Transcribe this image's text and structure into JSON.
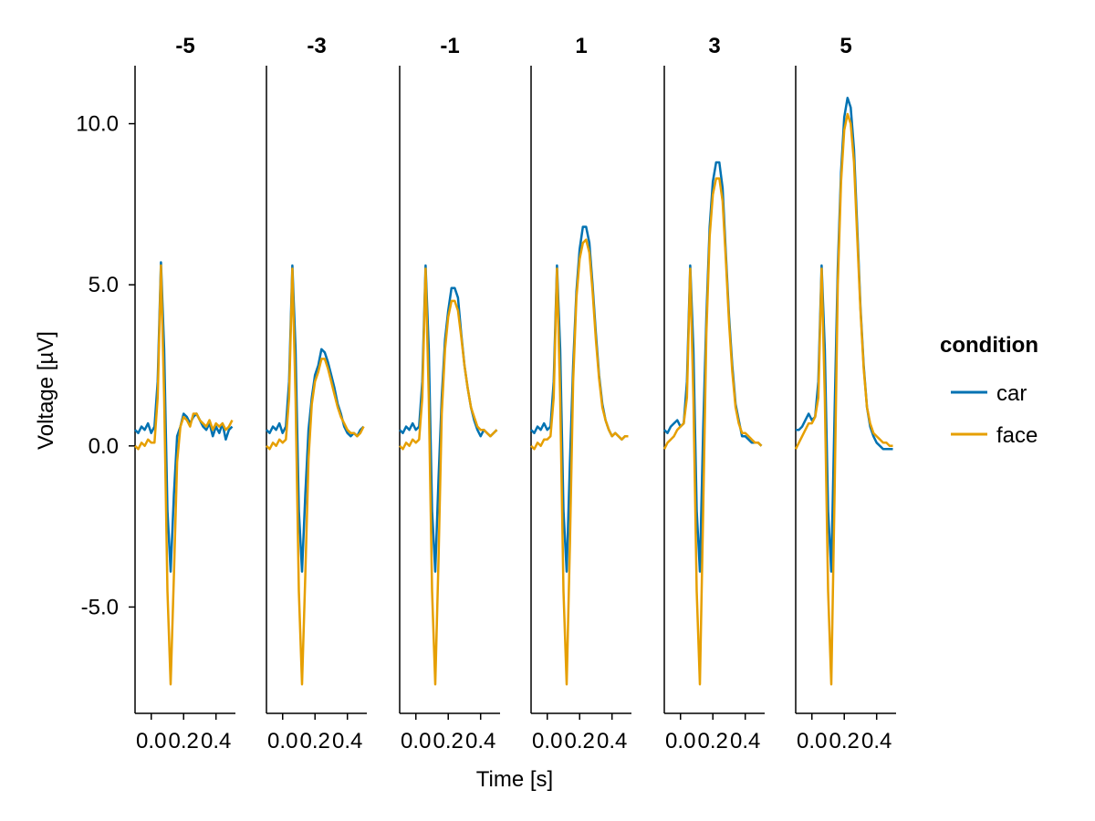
{
  "chart_data": {
    "type": "line",
    "xlabel": "Time [s]",
    "ylabel": "Voltage [µV]",
    "xlim": [
      -0.1,
      0.52
    ],
    "ylim": [
      -8.3,
      11.8
    ],
    "x_ticks": [
      0.0,
      0.2,
      0.4
    ],
    "x_tick_labels": [
      "0.0",
      "0.2",
      "0.4"
    ],
    "y_ticks": [
      -5.0,
      0.0,
      5.0,
      10.0
    ],
    "y_tick_labels": [
      "-5.0",
      "0.0",
      "5.0",
      "10.0"
    ],
    "grid": false,
    "legend": {
      "title": "condition",
      "placement": "right",
      "entries": [
        {
          "label": "car",
          "color": "#0072B2"
        },
        {
          "label": "face",
          "color": "#E69F00"
        }
      ]
    },
    "x": [
      -0.1,
      -0.08,
      -0.06,
      -0.04,
      -0.02,
      0.0,
      0.02,
      0.04,
      0.06,
      0.08,
      0.1,
      0.12,
      0.14,
      0.16,
      0.18,
      0.2,
      0.22,
      0.24,
      0.26,
      0.28,
      0.3,
      0.32,
      0.34,
      0.36,
      0.38,
      0.4,
      0.42,
      0.44,
      0.46,
      0.48,
      0.5
    ],
    "panels": [
      {
        "title": "-5",
        "series": [
          {
            "name": "car",
            "color": "#0072B2",
            "values": [
              0.5,
              0.4,
              0.6,
              0.5,
              0.7,
              0.4,
              0.6,
              2.0,
              5.7,
              3.0,
              -2.0,
              -3.9,
              -1.5,
              0.3,
              0.6,
              1.0,
              0.9,
              0.7,
              0.9,
              1.0,
              0.8,
              0.6,
              0.5,
              0.7,
              0.3,
              0.6,
              0.4,
              0.7,
              0.2,
              0.5,
              0.6
            ]
          },
          {
            "name": "face",
            "color": "#E69F00",
            "values": [
              0.0,
              -0.1,
              0.1,
              0.0,
              0.2,
              0.1,
              0.1,
              1.5,
              5.6,
              1.5,
              -4.5,
              -7.4,
              -4.0,
              -0.5,
              0.6,
              0.9,
              0.8,
              0.6,
              1.0,
              1.0,
              0.8,
              0.7,
              0.6,
              0.8,
              0.5,
              0.7,
              0.6,
              0.7,
              0.5,
              0.6,
              0.8
            ]
          }
        ]
      },
      {
        "title": "-3",
        "series": [
          {
            "name": "car",
            "color": "#0072B2",
            "values": [
              0.5,
              0.4,
              0.6,
              0.5,
              0.7,
              0.4,
              0.6,
              2.0,
              5.6,
              3.0,
              -2.0,
              -3.9,
              -1.5,
              0.5,
              1.5,
              2.2,
              2.5,
              3.0,
              2.9,
              2.6,
              2.2,
              1.8,
              1.3,
              1.0,
              0.6,
              0.4,
              0.3,
              0.4,
              0.3,
              0.5,
              0.6
            ]
          },
          {
            "name": "face",
            "color": "#E69F00",
            "values": [
              0.0,
              -0.1,
              0.1,
              0.0,
              0.2,
              0.1,
              0.2,
              1.5,
              5.5,
              1.5,
              -4.5,
              -7.4,
              -4.0,
              -0.4,
              1.3,
              2.0,
              2.3,
              2.7,
              2.7,
              2.4,
              2.0,
              1.6,
              1.2,
              0.9,
              0.7,
              0.5,
              0.4,
              0.4,
              0.3,
              0.4,
              0.6
            ]
          }
        ]
      },
      {
        "title": "-1",
        "series": [
          {
            "name": "car",
            "color": "#0072B2",
            "values": [
              0.5,
              0.4,
              0.6,
              0.5,
              0.7,
              0.5,
              0.6,
              2.0,
              5.6,
              3.0,
              -2.0,
              -3.9,
              -1.0,
              1.5,
              3.3,
              4.2,
              4.9,
              4.9,
              4.6,
              3.5,
              2.5,
              1.8,
              1.2,
              0.8,
              0.5,
              0.3,
              0.5,
              0.4,
              0.3,
              0.4,
              0.5
            ]
          },
          {
            "name": "face",
            "color": "#E69F00",
            "values": [
              0.0,
              -0.1,
              0.1,
              0.0,
              0.2,
              0.1,
              0.2,
              1.5,
              5.5,
              1.5,
              -4.5,
              -7.4,
              -3.5,
              1.0,
              3.0,
              4.0,
              4.5,
              4.5,
              4.2,
              3.4,
              2.5,
              1.8,
              1.2,
              0.9,
              0.6,
              0.5,
              0.5,
              0.4,
              0.3,
              0.4,
              0.5
            ]
          }
        ]
      },
      {
        "title": "1",
        "series": [
          {
            "name": "car",
            "color": "#0072B2",
            "values": [
              0.5,
              0.4,
              0.6,
              0.5,
              0.7,
              0.5,
              0.6,
              2.0,
              5.6,
              3.0,
              -2.0,
              -3.9,
              -0.5,
              2.5,
              4.8,
              6.1,
              6.8,
              6.8,
              6.3,
              5.0,
              3.5,
              2.2,
              1.3,
              0.8,
              0.5,
              0.3,
              0.4,
              0.3,
              0.2,
              0.3,
              0.3
            ]
          },
          {
            "name": "face",
            "color": "#E69F00",
            "values": [
              0.0,
              -0.1,
              0.1,
              0.0,
              0.2,
              0.2,
              0.3,
              1.5,
              5.5,
              1.5,
              -4.5,
              -7.4,
              -3.0,
              2.0,
              4.6,
              5.8,
              6.3,
              6.4,
              6.0,
              4.8,
              3.3,
              2.1,
              1.2,
              0.8,
              0.5,
              0.3,
              0.4,
              0.3,
              0.2,
              0.3,
              0.3
            ]
          }
        ]
      },
      {
        "title": "3",
        "series": [
          {
            "name": "car",
            "color": "#0072B2",
            "values": [
              0.5,
              0.4,
              0.6,
              0.7,
              0.8,
              0.6,
              0.7,
              2.0,
              5.6,
              3.0,
              -2.0,
              -3.9,
              0.5,
              4.0,
              6.8,
              8.2,
              8.8,
              8.8,
              8.0,
              6.0,
              4.0,
              2.5,
              1.3,
              0.8,
              0.3,
              0.3,
              0.2,
              0.1,
              0.1,
              0.1,
              0.0
            ]
          },
          {
            "name": "face",
            "color": "#E69F00",
            "values": [
              -0.1,
              0.1,
              0.2,
              0.3,
              0.5,
              0.6,
              0.7,
              1.5,
              5.5,
              1.5,
              -4.5,
              -7.4,
              -2.0,
              3.5,
              6.5,
              7.8,
              8.3,
              8.3,
              7.6,
              5.8,
              3.8,
              2.3,
              1.2,
              0.7,
              0.4,
              0.4,
              0.3,
              0.2,
              0.1,
              0.1,
              0.0
            ]
          }
        ]
      },
      {
        "title": "5",
        "series": [
          {
            "name": "car",
            "color": "#0072B2",
            "values": [
              0.5,
              0.5,
              0.6,
              0.8,
              1.0,
              0.8,
              0.9,
              2.0,
              5.6,
              3.0,
              -2.0,
              -3.9,
              1.0,
              5.5,
              8.5,
              10.2,
              10.8,
              10.5,
              9.2,
              6.8,
              4.3,
              2.5,
              1.2,
              0.6,
              0.3,
              0.1,
              0.0,
              -0.1,
              -0.1,
              -0.1,
              -0.1
            ]
          },
          {
            "name": "face",
            "color": "#E69F00",
            "values": [
              -0.1,
              0.1,
              0.3,
              0.5,
              0.7,
              0.7,
              0.9,
              1.5,
              5.5,
              1.5,
              -4.5,
              -7.4,
              -1.5,
              5.0,
              8.2,
              9.8,
              10.3,
              10.0,
              8.8,
              6.5,
              4.2,
              2.4,
              1.2,
              0.7,
              0.4,
              0.3,
              0.2,
              0.1,
              0.1,
              0.0,
              0.0
            ]
          }
        ]
      }
    ]
  }
}
